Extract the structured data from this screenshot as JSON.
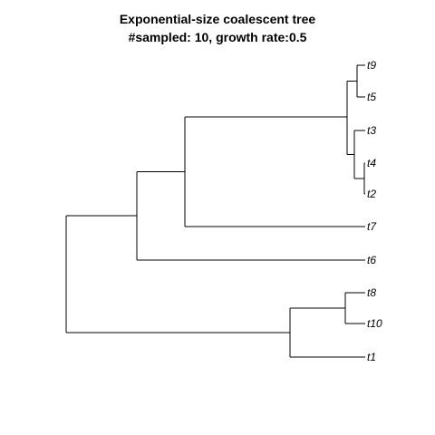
{
  "title": {
    "line1": "Exponential-size coalescent tree",
    "line2": "#sampled: 10, growth rate:0.5"
  },
  "tree": {
    "tips": [
      {
        "id": "t9",
        "label": "t9"
      },
      {
        "id": "t5",
        "label": "t5"
      },
      {
        "id": "t3",
        "label": "t3"
      },
      {
        "id": "t4",
        "label": "t4"
      },
      {
        "id": "t2",
        "label": "t2"
      },
      {
        "id": "t7",
        "label": "t7"
      },
      {
        "id": "t6",
        "label": "t6"
      },
      {
        "id": "t8",
        "label": "t8"
      },
      {
        "id": "t10",
        "label": "t10"
      },
      {
        "id": "t1",
        "label": "t1"
      }
    ]
  }
}
